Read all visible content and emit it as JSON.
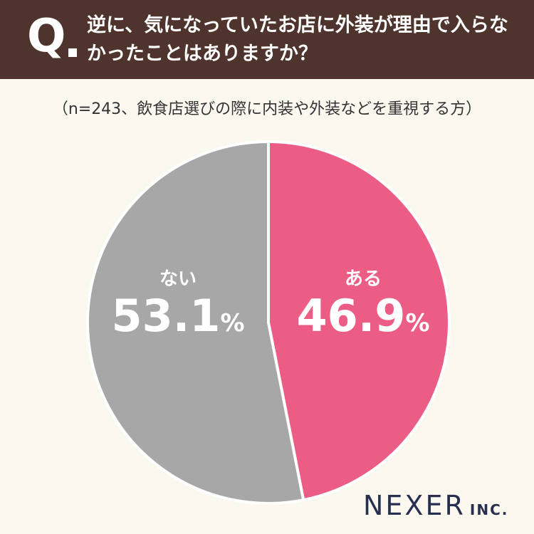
{
  "header": {
    "q_mark": "Q",
    "question": "逆に、気になっていたお店に外装が理由で入らなかったことはありますか？"
  },
  "subtitle": "（n=243、飲食店選びの際に内装や外装などを重視する方）",
  "chart_data": {
    "type": "pie",
    "slices": [
      {
        "label": "ある",
        "value": 46.9,
        "display": "46.9",
        "color": "#ec5d85"
      },
      {
        "label": "ない",
        "value": 53.1,
        "display": "53.1",
        "color": "#a7a7a7"
      }
    ],
    "unit": "%",
    "start": "12 o'clock",
    "direction": "clockwise",
    "separator_color": "#ffffff"
  },
  "branding": {
    "logo_main": "NEXER",
    "logo_sub": "INC."
  },
  "colors": {
    "header_bg": "#4e342d",
    "page_bg": "#fbf8f0",
    "logo": "#28304f"
  }
}
